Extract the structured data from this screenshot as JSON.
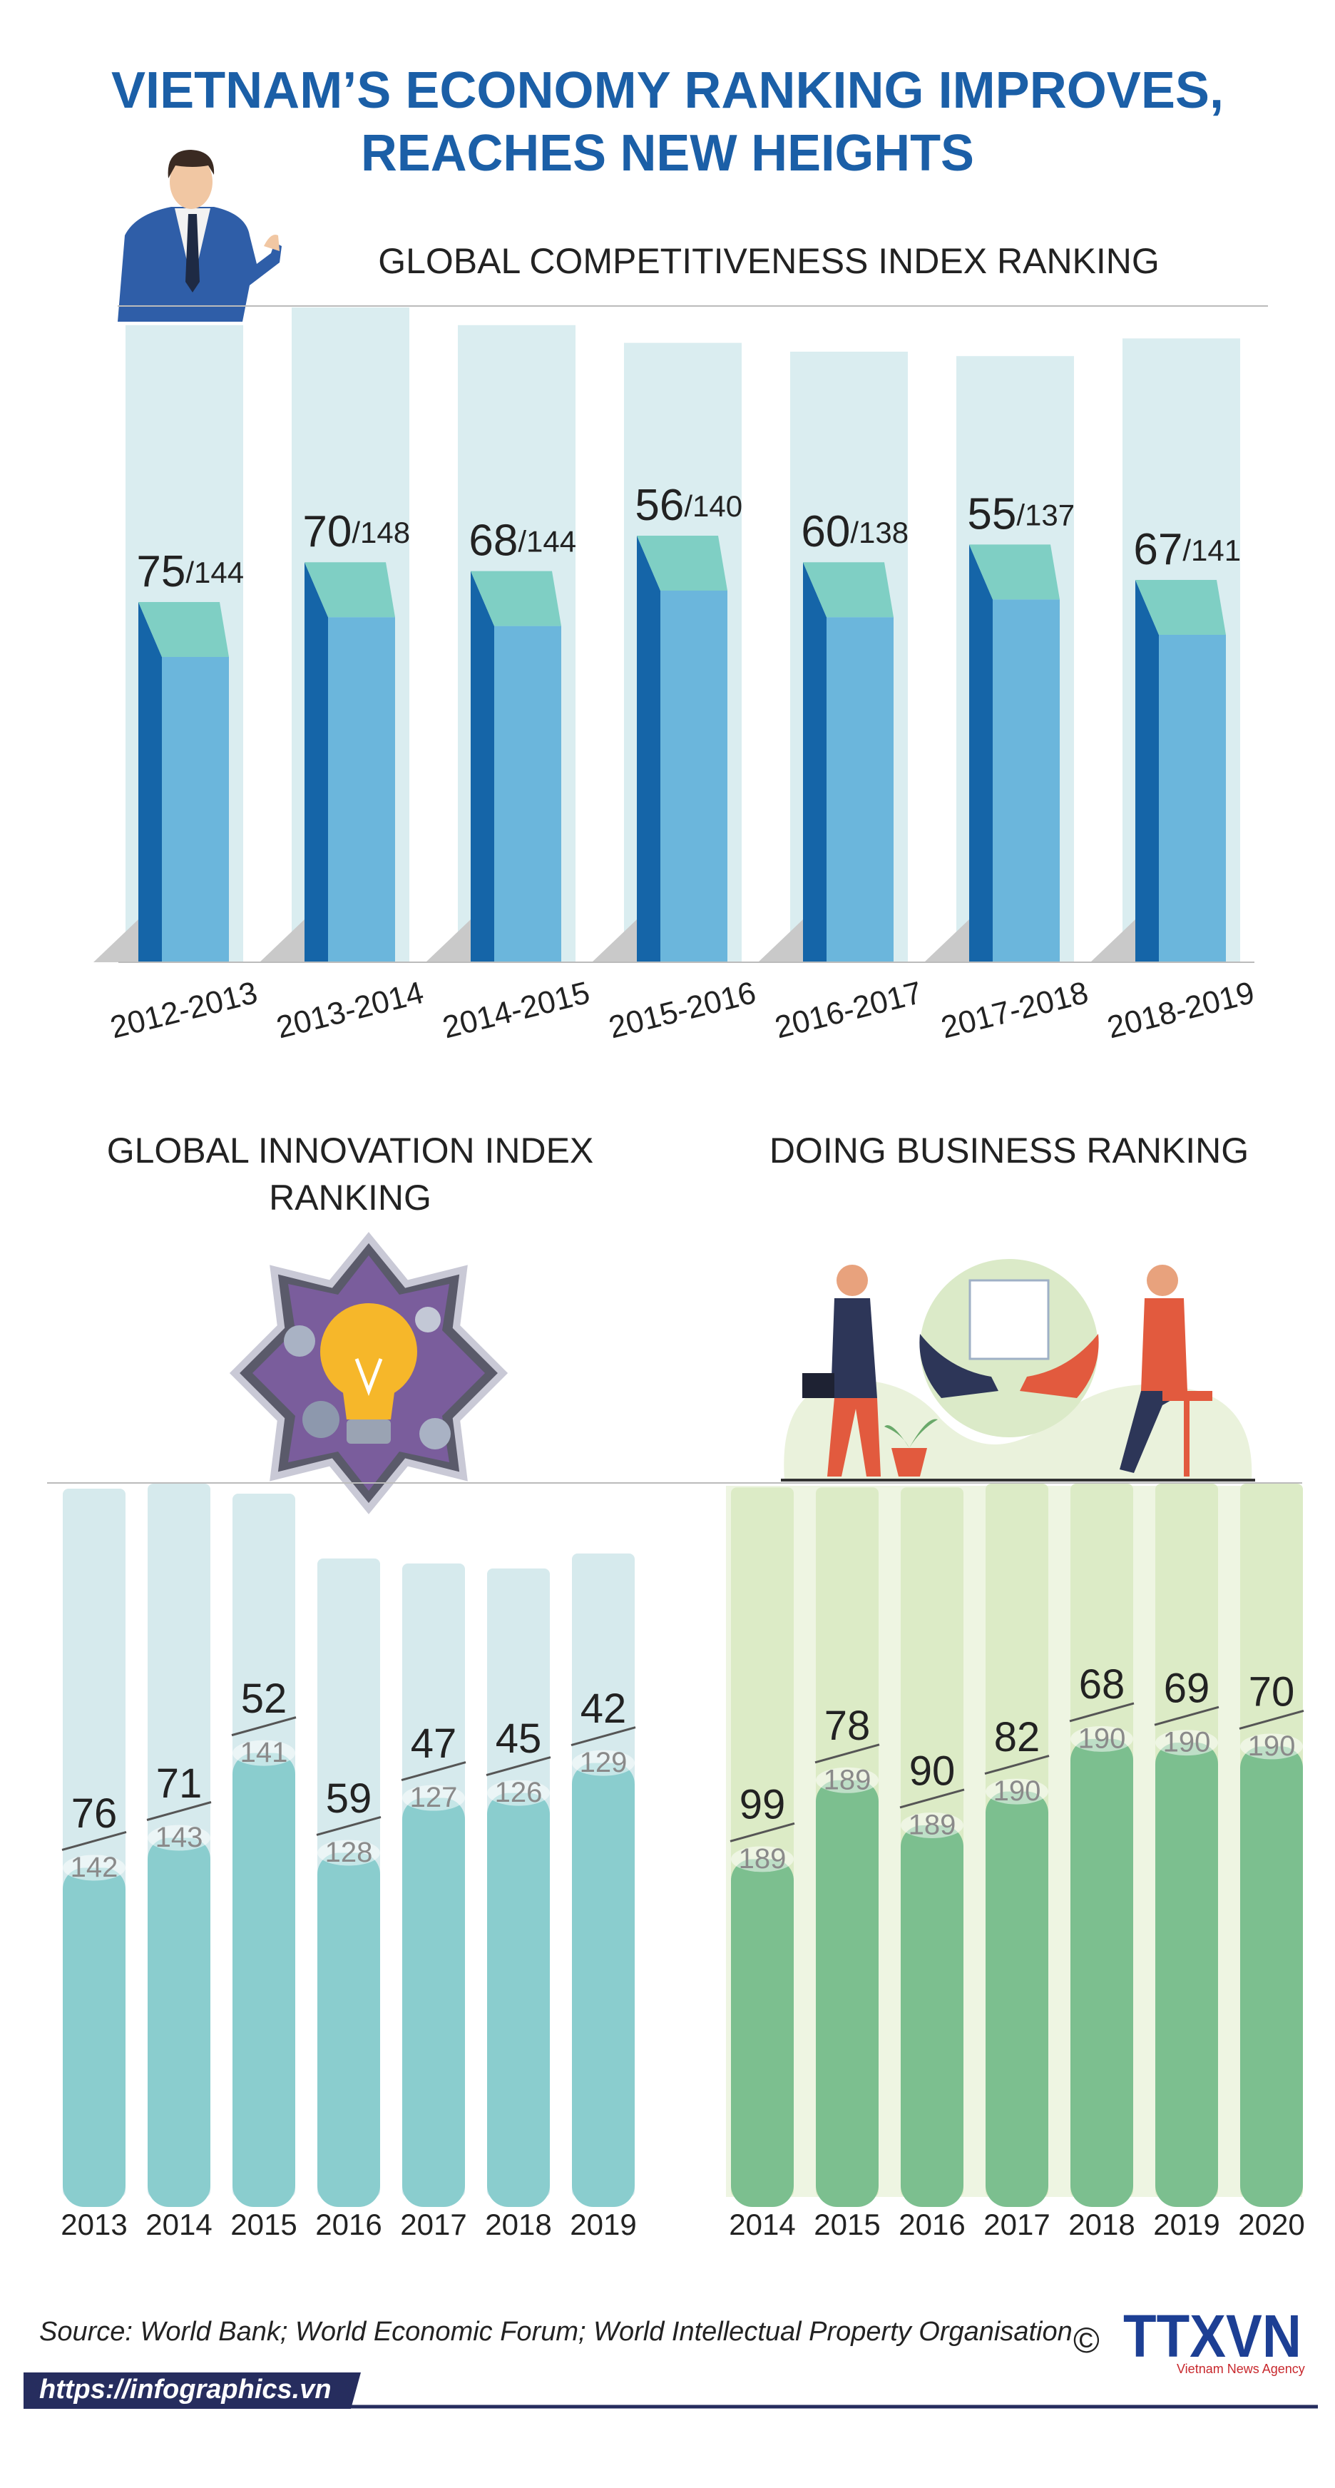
{
  "header": {
    "title": [
      "VIETNAM’S ECONOMY RANKING IMPROVES,",
      "REACHES NEW HEIGHTS"
    ]
  },
  "chart_data": [
    {
      "type": "prism-bar",
      "title": [
        "GLOBAL COMPETITIVENESS INDEX RANKING"
      ],
      "categories": [
        "2012-2013",
        "2013-2014",
        "2014-2015",
        "2015-2016",
        "2016-2017",
        "2017-2018",
        "2018-2019"
      ],
      "series": [
        {
          "values": [
            75,
            70,
            68,
            56,
            60,
            55,
            67
          ],
          "color": "#6bb6dc"
        },
        {
          "values": [
            144,
            148,
            144,
            140,
            138,
            137,
            141
          ],
          "value_labels": [
            "/144",
            "/148",
            "/144",
            "/140",
            "/138",
            "/137",
            "/141"
          ],
          "color": "#daedf0"
        }
      ],
      "ylim": [
        0,
        148
      ]
    },
    {
      "type": "cylinder-bar",
      "title": [
        "GLOBAL INNOVATION INDEX",
        "RANKING"
      ],
      "categories": [
        "2013",
        "2014",
        "2015",
        "2016",
        "2017",
        "2018",
        "2019"
      ],
      "series": [
        {
          "values": [
            76,
            71,
            52,
            59,
            47,
            45,
            42
          ],
          "color": "#8acdce"
        },
        {
          "values": [
            142,
            143,
            141,
            128,
            127,
            126,
            129
          ],
          "color": "#d6eaed"
        }
      ],
      "ylim": [
        0,
        143
      ]
    },
    {
      "type": "cylinder-bar",
      "title": [
        "DOING BUSINESS RANKING"
      ],
      "categories": [
        "2014",
        "2015",
        "2016",
        "2017",
        "2018",
        "2019",
        "2020"
      ],
      "series": [
        {
          "values": [
            99,
            78,
            90,
            82,
            68,
            69,
            70
          ],
          "color": "#7cbf8f"
        },
        {
          "values": [
            189,
            189,
            189,
            190,
            190,
            190,
            190
          ],
          "color": "#dcebc6"
        }
      ],
      "ylim": [
        0,
        190
      ]
    }
  ],
  "footer": {
    "source": "Source: World Bank; World Economic Forum; World Intellectual Property Organisation",
    "url": "https://infographics.vn",
    "copyright": "©",
    "logo": "TTXVN",
    "logo_subtitle": "Vietnam News Agency"
  }
}
